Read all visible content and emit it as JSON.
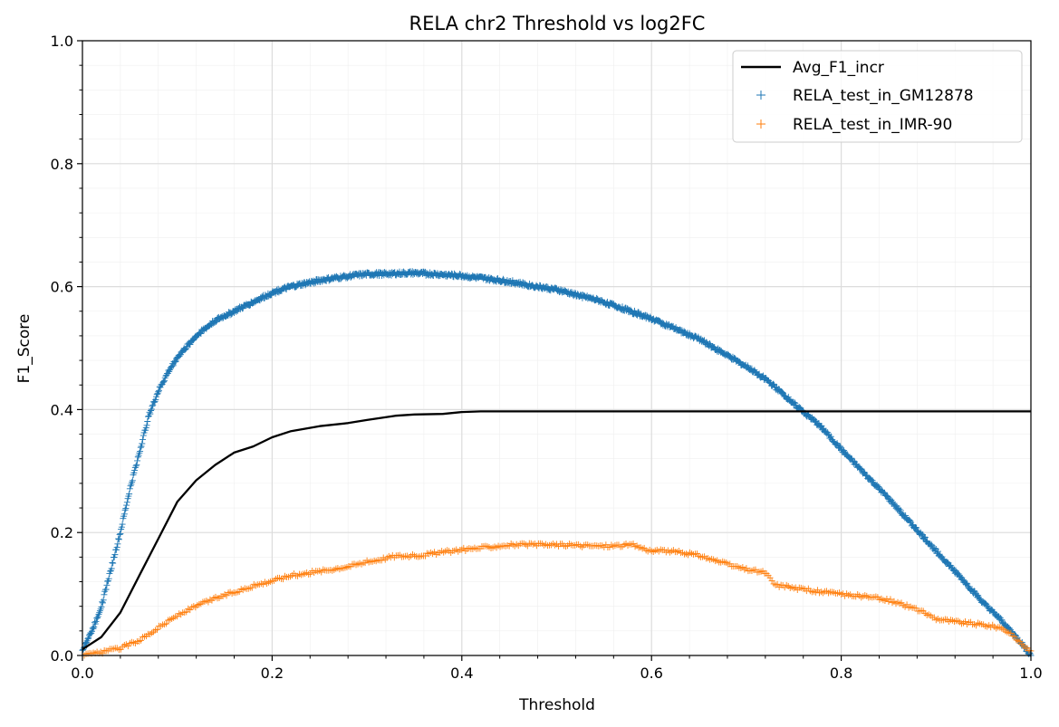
{
  "chart_data": {
    "type": "scatter",
    "title": "RELA chr2 Threshold vs log2FC",
    "xlabel": "Threshold",
    "ylabel": "F1_Score",
    "xlim": [
      0.0,
      1.0
    ],
    "ylim": [
      0.0,
      1.0
    ],
    "x_ticks": [
      "0.0",
      "0.2",
      "0.4",
      "0.6",
      "0.8",
      "1.0"
    ],
    "y_ticks": [
      "0.0",
      "0.2",
      "0.4",
      "0.6",
      "0.8",
      "1.0"
    ],
    "grid": "major and minor",
    "legend_position": "top-right",
    "series": [
      {
        "name": "Avg_F1_incr",
        "kind": "line",
        "color": "#000000",
        "points": [
          [
            0.0,
            0.01
          ],
          [
            0.02,
            0.03
          ],
          [
            0.04,
            0.07
          ],
          [
            0.06,
            0.13
          ],
          [
            0.08,
            0.19
          ],
          [
            0.1,
            0.25
          ],
          [
            0.12,
            0.285
          ],
          [
            0.14,
            0.31
          ],
          [
            0.16,
            0.33
          ],
          [
            0.18,
            0.34
          ],
          [
            0.2,
            0.355
          ],
          [
            0.22,
            0.365
          ],
          [
            0.25,
            0.373
          ],
          [
            0.28,
            0.378
          ],
          [
            0.3,
            0.383
          ],
          [
            0.33,
            0.39
          ],
          [
            0.35,
            0.392
          ],
          [
            0.38,
            0.393
          ],
          [
            0.4,
            0.396
          ],
          [
            0.42,
            0.397
          ],
          [
            0.5,
            0.397
          ],
          [
            0.7,
            0.397
          ],
          [
            0.9,
            0.397
          ],
          [
            1.0,
            0.397
          ]
        ]
      },
      {
        "name": "RELA_test_in_GM12878",
        "kind": "scatter",
        "marker": "+",
        "color": "#1f77b4",
        "points": [
          [
            0.0,
            0.01
          ],
          [
            0.01,
            0.04
          ],
          [
            0.02,
            0.08
          ],
          [
            0.03,
            0.14
          ],
          [
            0.04,
            0.2
          ],
          [
            0.05,
            0.27
          ],
          [
            0.06,
            0.33
          ],
          [
            0.07,
            0.39
          ],
          [
            0.08,
            0.43
          ],
          [
            0.09,
            0.46
          ],
          [
            0.1,
            0.485
          ],
          [
            0.12,
            0.52
          ],
          [
            0.14,
            0.545
          ],
          [
            0.16,
            0.56
          ],
          [
            0.18,
            0.575
          ],
          [
            0.2,
            0.59
          ],
          [
            0.22,
            0.6
          ],
          [
            0.25,
            0.61
          ],
          [
            0.28,
            0.617
          ],
          [
            0.3,
            0.62
          ],
          [
            0.35,
            0.622
          ],
          [
            0.4,
            0.618
          ],
          [
            0.45,
            0.608
          ],
          [
            0.5,
            0.595
          ],
          [
            0.55,
            0.575
          ],
          [
            0.6,
            0.548
          ],
          [
            0.65,
            0.515
          ],
          [
            0.7,
            0.47
          ],
          [
            0.72,
            0.45
          ],
          [
            0.75,
            0.41
          ],
          [
            0.78,
            0.37
          ],
          [
            0.8,
            0.335
          ],
          [
            0.85,
            0.255
          ],
          [
            0.9,
            0.17
          ],
          [
            0.93,
            0.12
          ],
          [
            0.95,
            0.085
          ],
          [
            0.97,
            0.055
          ],
          [
            0.99,
            0.02
          ],
          [
            1.0,
            0.0
          ]
        ]
      },
      {
        "name": "RELA_test_in_IMR-90",
        "kind": "scatter",
        "marker": "+",
        "color": "#ff7f0e",
        "points": [
          [
            0.0,
            0.0
          ],
          [
            0.02,
            0.005
          ],
          [
            0.04,
            0.012
          ],
          [
            0.06,
            0.025
          ],
          [
            0.08,
            0.045
          ],
          [
            0.1,
            0.065
          ],
          [
            0.12,
            0.08
          ],
          [
            0.14,
            0.093
          ],
          [
            0.16,
            0.103
          ],
          [
            0.18,
            0.113
          ],
          [
            0.2,
            0.122
          ],
          [
            0.22,
            0.13
          ],
          [
            0.25,
            0.137
          ],
          [
            0.28,
            0.145
          ],
          [
            0.3,
            0.152
          ],
          [
            0.33,
            0.162
          ],
          [
            0.35,
            0.162
          ],
          [
            0.4,
            0.172
          ],
          [
            0.45,
            0.18
          ],
          [
            0.5,
            0.18
          ],
          [
            0.55,
            0.178
          ],
          [
            0.58,
            0.18
          ],
          [
            0.6,
            0.17
          ],
          [
            0.62,
            0.17
          ],
          [
            0.65,
            0.163
          ],
          [
            0.68,
            0.148
          ],
          [
            0.7,
            0.14
          ],
          [
            0.72,
            0.135
          ],
          [
            0.73,
            0.115
          ],
          [
            0.75,
            0.11
          ],
          [
            0.78,
            0.103
          ],
          [
            0.8,
            0.1
          ],
          [
            0.83,
            0.095
          ],
          [
            0.85,
            0.09
          ],
          [
            0.88,
            0.075
          ],
          [
            0.9,
            0.06
          ],
          [
            0.92,
            0.055
          ],
          [
            0.95,
            0.05
          ],
          [
            0.97,
            0.045
          ],
          [
            0.99,
            0.02
          ],
          [
            1.0,
            0.005
          ]
        ]
      }
    ]
  }
}
